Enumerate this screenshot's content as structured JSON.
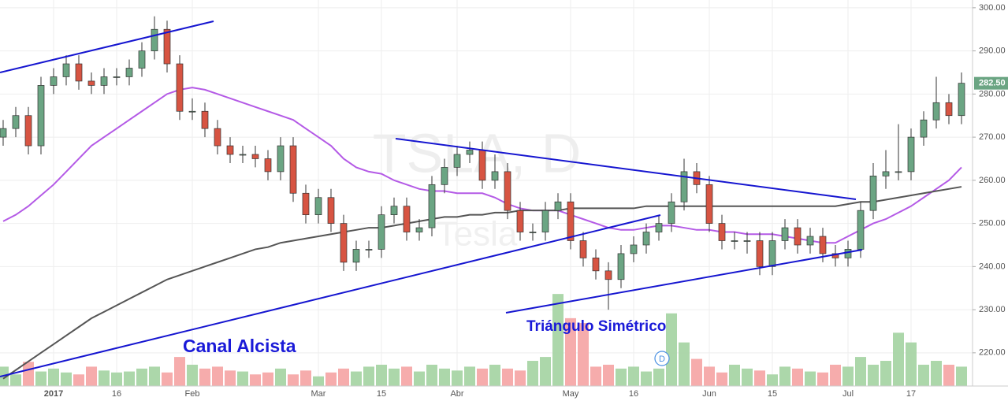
{
  "chart_data": {
    "type": "candlestick",
    "watermark": "TSLA, D",
    "watermark_sub": "Tesla",
    "categories": [
      null,
      null,
      null,
      null,
      "2017",
      null,
      null,
      null,
      null,
      "16",
      null,
      null,
      null,
      null,
      null,
      "Feb",
      null,
      null,
      null,
      null,
      null,
      null,
      null,
      null,
      null,
      "Mar",
      null,
      null,
      null,
      null,
      "15",
      null,
      null,
      null,
      null,
      null,
      "Abr",
      null,
      null,
      null,
      null,
      null,
      null,
      null,
      null,
      "May",
      null,
      null,
      null,
      null,
      "16",
      null,
      null,
      null,
      null,
      null,
      "Jun",
      null,
      null,
      null,
      null,
      "15",
      null,
      null,
      null,
      null,
      null,
      "Jul",
      null,
      null,
      null,
      null,
      "17",
      null,
      null,
      null,
      null
    ],
    "open": [
      270,
      272,
      275,
      268,
      282,
      284,
      287,
      283,
      282,
      284,
      284,
      286,
      290,
      295,
      287,
      276,
      276,
      272,
      268,
      266,
      266,
      265,
      262,
      268,
      257,
      252,
      256,
      250,
      241,
      244,
      244,
      252,
      254,
      248,
      249,
      259,
      263,
      266,
      267,
      260,
      262,
      253,
      248,
      248,
      253,
      255,
      246,
      242,
      239,
      237,
      243,
      245,
      248,
      250,
      255,
      262,
      259,
      250,
      246,
      246,
      246,
      240,
      246,
      249,
      245,
      247,
      243,
      242,
      244,
      253,
      261,
      262,
      262,
      270,
      274,
      278,
      275
    ],
    "high": [
      274,
      277,
      277,
      284,
      286,
      289,
      289,
      285,
      286,
      286,
      288,
      292,
      298,
      297,
      289,
      279,
      278,
      274,
      270,
      268,
      268,
      267,
      270,
      270,
      259,
      258,
      258,
      252,
      246,
      246,
      254,
      256,
      256,
      251,
      261,
      265,
      268,
      269,
      269,
      266,
      264,
      255,
      250,
      255,
      257,
      257,
      248,
      244,
      241,
      245,
      247,
      250,
      252,
      257,
      265,
      264,
      261,
      252,
      248,
      248,
      248,
      248,
      251,
      251,
      249,
      249,
      245,
      246,
      255,
      264,
      267,
      273,
      272,
      276,
      284,
      280,
      285
    ],
    "low": [
      268,
      270,
      266,
      266,
      280,
      282,
      281,
      280,
      280,
      282,
      282,
      284,
      288,
      285,
      274,
      274,
      270,
      266,
      264,
      264,
      263,
      260,
      260,
      255,
      250,
      250,
      248,
      239,
      239,
      242,
      242,
      250,
      246,
      246,
      247,
      257,
      261,
      264,
      258,
      258,
      251,
      246,
      246,
      246,
      251,
      244,
      240,
      237,
      230,
      235,
      241,
      243,
      246,
      248,
      253,
      257,
      248,
      244,
      244,
      243,
      238,
      238,
      244,
      243,
      243,
      241,
      240,
      240,
      242,
      251,
      258,
      260,
      260,
      268,
      272,
      273,
      273
    ],
    "close": [
      272,
      275,
      268,
      282,
      284,
      287,
      283,
      282,
      284,
      284,
      286,
      290,
      295,
      287,
      276,
      276,
      272,
      268,
      266,
      266,
      265,
      262,
      268,
      257,
      252,
      256,
      250,
      241,
      244,
      244,
      252,
      254,
      248,
      249,
      259,
      263,
      266,
      267,
      260,
      262,
      253,
      248,
      248,
      253,
      255,
      246,
      242,
      239,
      237,
      243,
      245,
      248,
      250,
      255,
      262,
      259,
      250,
      246,
      246,
      246,
      240,
      246,
      249,
      245,
      247,
      243,
      242,
      244,
      253,
      261,
      262,
      262,
      270,
      274,
      278,
      275,
      282.5
    ],
    "last_label": "282.50",
    "volume": [
      20,
      12,
      25,
      15,
      18,
      14,
      12,
      20,
      16,
      14,
      15,
      18,
      20,
      14,
      30,
      22,
      18,
      20,
      16,
      15,
      12,
      14,
      18,
      12,
      16,
      10,
      14,
      18,
      15,
      20,
      22,
      18,
      20,
      15,
      22,
      18,
      16,
      20,
      18,
      22,
      18,
      16,
      26,
      30,
      95,
      70,
      65,
      20,
      22,
      18,
      20,
      15,
      18,
      75,
      45,
      28,
      20,
      14,
      22,
      18,
      16,
      12,
      20,
      18,
      15,
      14,
      22,
      20,
      30,
      22,
      26,
      55,
      45,
      22,
      26,
      22,
      20
    ],
    "vlim": [
      0,
      100
    ],
    "series": [
      {
        "color": "#b45ae6",
        "values": [
          250.5,
          252,
          254,
          256.5,
          259,
          262,
          265,
          268,
          270,
          272,
          274,
          276,
          278,
          280,
          281,
          281.5,
          281,
          280,
          279,
          278,
          277,
          276,
          275,
          274,
          272,
          270,
          268,
          265,
          263,
          262,
          261.5,
          260,
          259,
          258,
          257.5,
          257.5,
          257,
          257,
          257,
          256,
          254.5,
          253.5,
          253,
          253,
          253,
          252,
          251,
          250,
          249,
          248.5,
          248.5,
          249,
          249.5,
          249.5,
          249,
          248.5,
          248.5,
          248,
          248,
          247.5,
          247.5,
          247.5,
          247,
          246.5,
          246,
          245.5,
          245.5,
          247,
          248.5,
          250,
          251,
          252.5,
          254,
          256,
          258,
          260,
          263
        ]
      },
      {
        "color": "#555555",
        "values": [
          214,
          216,
          218,
          220,
          222,
          224,
          226,
          228,
          229.5,
          231,
          232.5,
          234,
          235.5,
          237,
          238,
          239,
          240,
          241,
          242,
          243,
          244,
          244.5,
          245.5,
          246,
          246.5,
          247,
          247.5,
          248,
          248.5,
          249,
          249,
          249.5,
          250,
          250.5,
          251,
          251.5,
          251.5,
          252,
          252,
          252.5,
          252.5,
          253,
          253,
          253,
          253,
          253.5,
          253.5,
          253.5,
          253.5,
          253.5,
          253.5,
          254,
          254,
          254,
          254,
          254,
          254,
          254,
          254,
          254,
          254,
          254,
          254,
          254,
          254,
          254,
          254,
          254.5,
          255,
          255,
          255.5,
          256,
          256.5,
          257,
          257.5,
          258,
          258.5
        ]
      }
    ],
    "ylim": [
      212.3,
      301.8
    ],
    "yticks": [
      {
        "value": 220,
        "label": "220.00"
      },
      {
        "value": 230,
        "label": "230.00"
      },
      {
        "value": 240,
        "label": "240.00"
      },
      {
        "value": 250,
        "label": "250.00"
      },
      {
        "value": 260,
        "label": "260.00"
      },
      {
        "value": 270,
        "label": "270.00"
      },
      {
        "value": 280,
        "label": "280.00"
      },
      {
        "value": 290,
        "label": "290.00"
      },
      {
        "value": 300,
        "label": "300.00"
      }
    ],
    "grid": true,
    "up_color": "#6ba583",
    "down_color": "#d75442",
    "annotations": [
      "Canal Alcista",
      "Triángulo Simétrico"
    ],
    "marker": "D"
  }
}
